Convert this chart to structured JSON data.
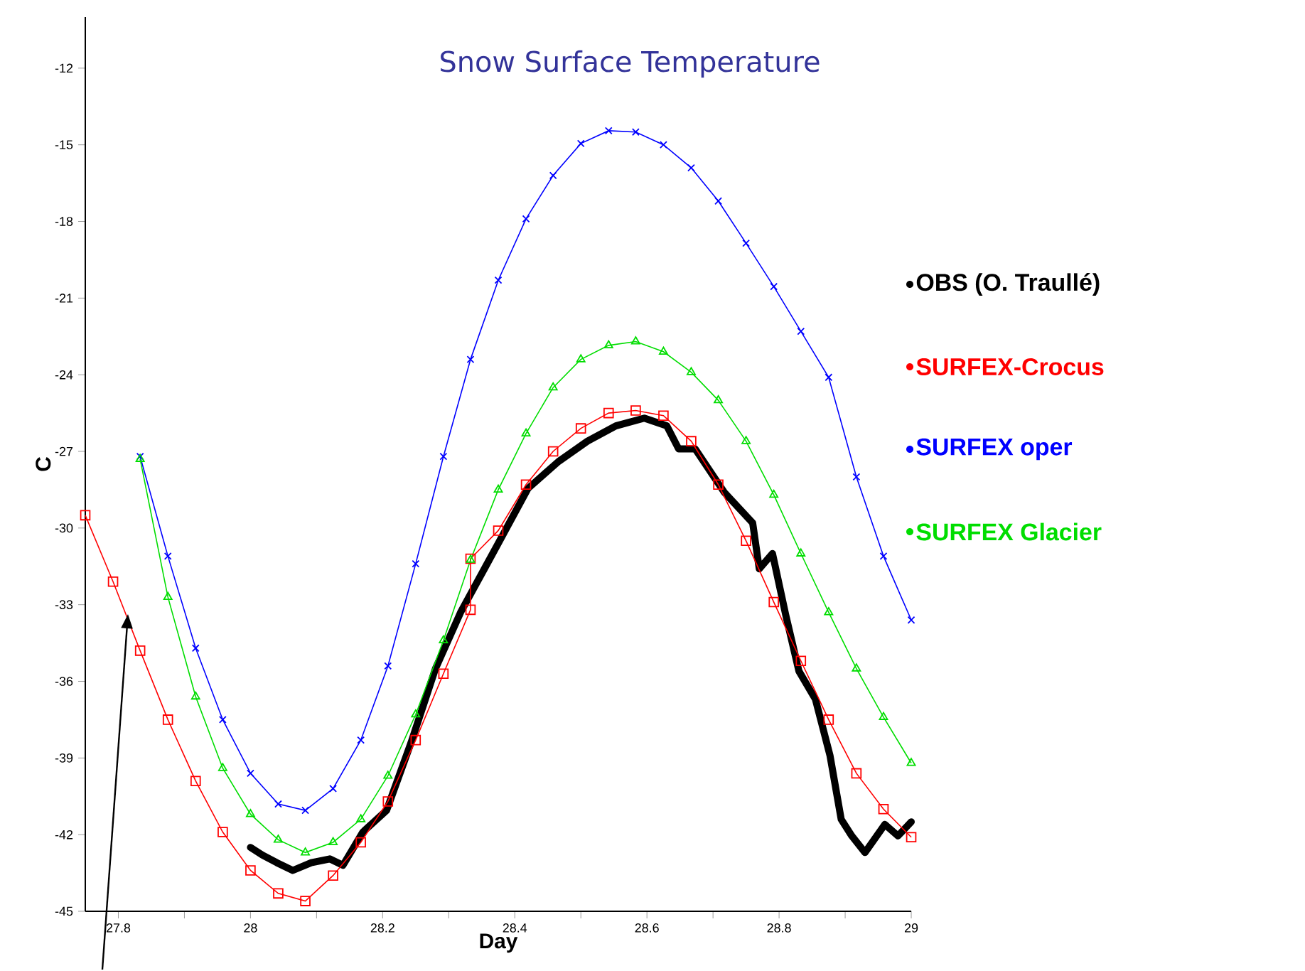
{
  "chart_data": {
    "type": "line",
    "title": "Snow Surface Temperature",
    "xlabel": "Day",
    "ylabel": "C",
    "xlim": [
      27.75,
      29
    ],
    "ylim": [
      -45,
      -10
    ],
    "xticks": [
      27.8,
      {
        "value": 27.9,
        "label": null
      },
      28,
      {
        "value": 28.1,
        "label": null
      },
      28.2,
      {
        "value": 28.3,
        "label": null
      },
      28.4,
      {
        "value": 28.5,
        "label": null
      },
      28.6,
      {
        "value": 28.7,
        "label": null
      },
      28.8,
      {
        "value": 28.9,
        "label": null
      },
      29
    ],
    "yticks": [
      -45,
      -42,
      -39,
      -36,
      -33,
      -30,
      -27,
      -24,
      -21,
      -18,
      -15,
      -12
    ],
    "legend": "right",
    "grid": false,
    "series": [
      {
        "name": "OBS (O. Traullé)",
        "color": "#000000",
        "marker": "none",
        "x": [
          28.0,
          28.018,
          28.04,
          28.064,
          28.092,
          28.12,
          28.14,
          28.17,
          28.206,
          28.243,
          28.28,
          28.318,
          28.356,
          28.375,
          28.42,
          28.466,
          28.51,
          28.553,
          28.596,
          28.63,
          28.648,
          28.673,
          28.717,
          28.76,
          28.77,
          28.79,
          28.81,
          28.83,
          28.855,
          28.877,
          28.894,
          28.91,
          28.93,
          28.96,
          28.98,
          29.0
        ],
        "values": [
          -42.5,
          -42.8,
          -43.1,
          -43.4,
          -43.1,
          -42.95,
          -43.2,
          -41.9,
          -41.05,
          -38.4,
          -35.5,
          -33.3,
          -31.5,
          -30.6,
          -28.45,
          -27.4,
          -26.6,
          -26.0,
          -25.7,
          -26.0,
          -26.9,
          -26.9,
          -28.6,
          -29.8,
          -31.6,
          -31.0,
          -33.4,
          -35.6,
          -36.7,
          -38.9,
          -41.4,
          -42.05,
          -42.7,
          -41.6,
          -42.05,
          -41.5
        ]
      },
      {
        "name": "SURFEX-Crocus",
        "color": "#ff0000",
        "marker": "square",
        "x": [
          27.75,
          27.792,
          27.833,
          27.875,
          27.917,
          27.958,
          28.0,
          28.042,
          28.083,
          28.125,
          28.167,
          28.208,
          28.25,
          28.292,
          28.333,
          28.333,
          28.375,
          28.417,
          28.458,
          28.5,
          28.542,
          28.583,
          28.625,
          28.667,
          28.708,
          28.75,
          28.792,
          28.833,
          28.875,
          28.917,
          28.958,
          29.0
        ],
        "values": [
          -29.5,
          -32.1,
          -34.8,
          -37.5,
          -39.9,
          -41.9,
          -43.4,
          -44.3,
          -44.6,
          -43.6,
          -42.3,
          -40.7,
          -38.3,
          -35.7,
          -33.2,
          -31.2,
          -30.1,
          -28.3,
          -27.0,
          -26.1,
          -25.5,
          -25.4,
          -25.6,
          -26.6,
          -28.3,
          -30.5,
          -32.9,
          -35.2,
          -37.5,
          -39.6,
          -41.0,
          -42.1
        ]
      },
      {
        "name": "SURFEX oper",
        "color": "#0000ff",
        "marker": "cross",
        "x": [
          27.833,
          27.875,
          27.917,
          27.958,
          28.0,
          28.042,
          28.083,
          28.125,
          28.167,
          28.208,
          28.25,
          28.292,
          28.333,
          28.375,
          28.417,
          28.458,
          28.5,
          28.542,
          28.583,
          28.625,
          28.667,
          28.708,
          28.75,
          28.792,
          28.833,
          28.875,
          28.917,
          28.958,
          29.0
        ],
        "values": [
          -27.2,
          -31.1,
          -34.7,
          -37.5,
          -39.6,
          -40.8,
          -41.05,
          -40.2,
          -38.3,
          -35.4,
          -31.4,
          -27.2,
          -23.4,
          -20.3,
          -17.9,
          -16.2,
          -14.95,
          -14.45,
          -14.5,
          -15.0,
          -15.9,
          -17.2,
          -18.85,
          -20.55,
          -22.3,
          -24.1,
          -28.0,
          -31.1,
          -33.6
        ]
      },
      {
        "name": "SURFEX Glacier",
        "color": "#00dd00",
        "marker": "triangle",
        "x": [
          27.833,
          27.875,
          27.917,
          27.958,
          28.0,
          28.042,
          28.083,
          28.125,
          28.167,
          28.208,
          28.25,
          28.292,
          28.333,
          28.375,
          28.417,
          28.458,
          28.5,
          28.542,
          28.583,
          28.625,
          28.667,
          28.708,
          28.75,
          28.792,
          28.833,
          28.875,
          28.917,
          28.958,
          29.0
        ],
        "values": [
          -27.3,
          -32.7,
          -36.6,
          -39.4,
          -41.2,
          -42.2,
          -42.7,
          -42.3,
          -41.4,
          -39.7,
          -37.3,
          -34.4,
          -31.25,
          -28.5,
          -26.3,
          -24.5,
          -23.4,
          -22.85,
          -22.7,
          -23.1,
          -23.9,
          -25.0,
          -26.6,
          -28.7,
          -31.0,
          -33.3,
          -35.5,
          -37.4,
          -39.2
        ]
      }
    ]
  }
}
